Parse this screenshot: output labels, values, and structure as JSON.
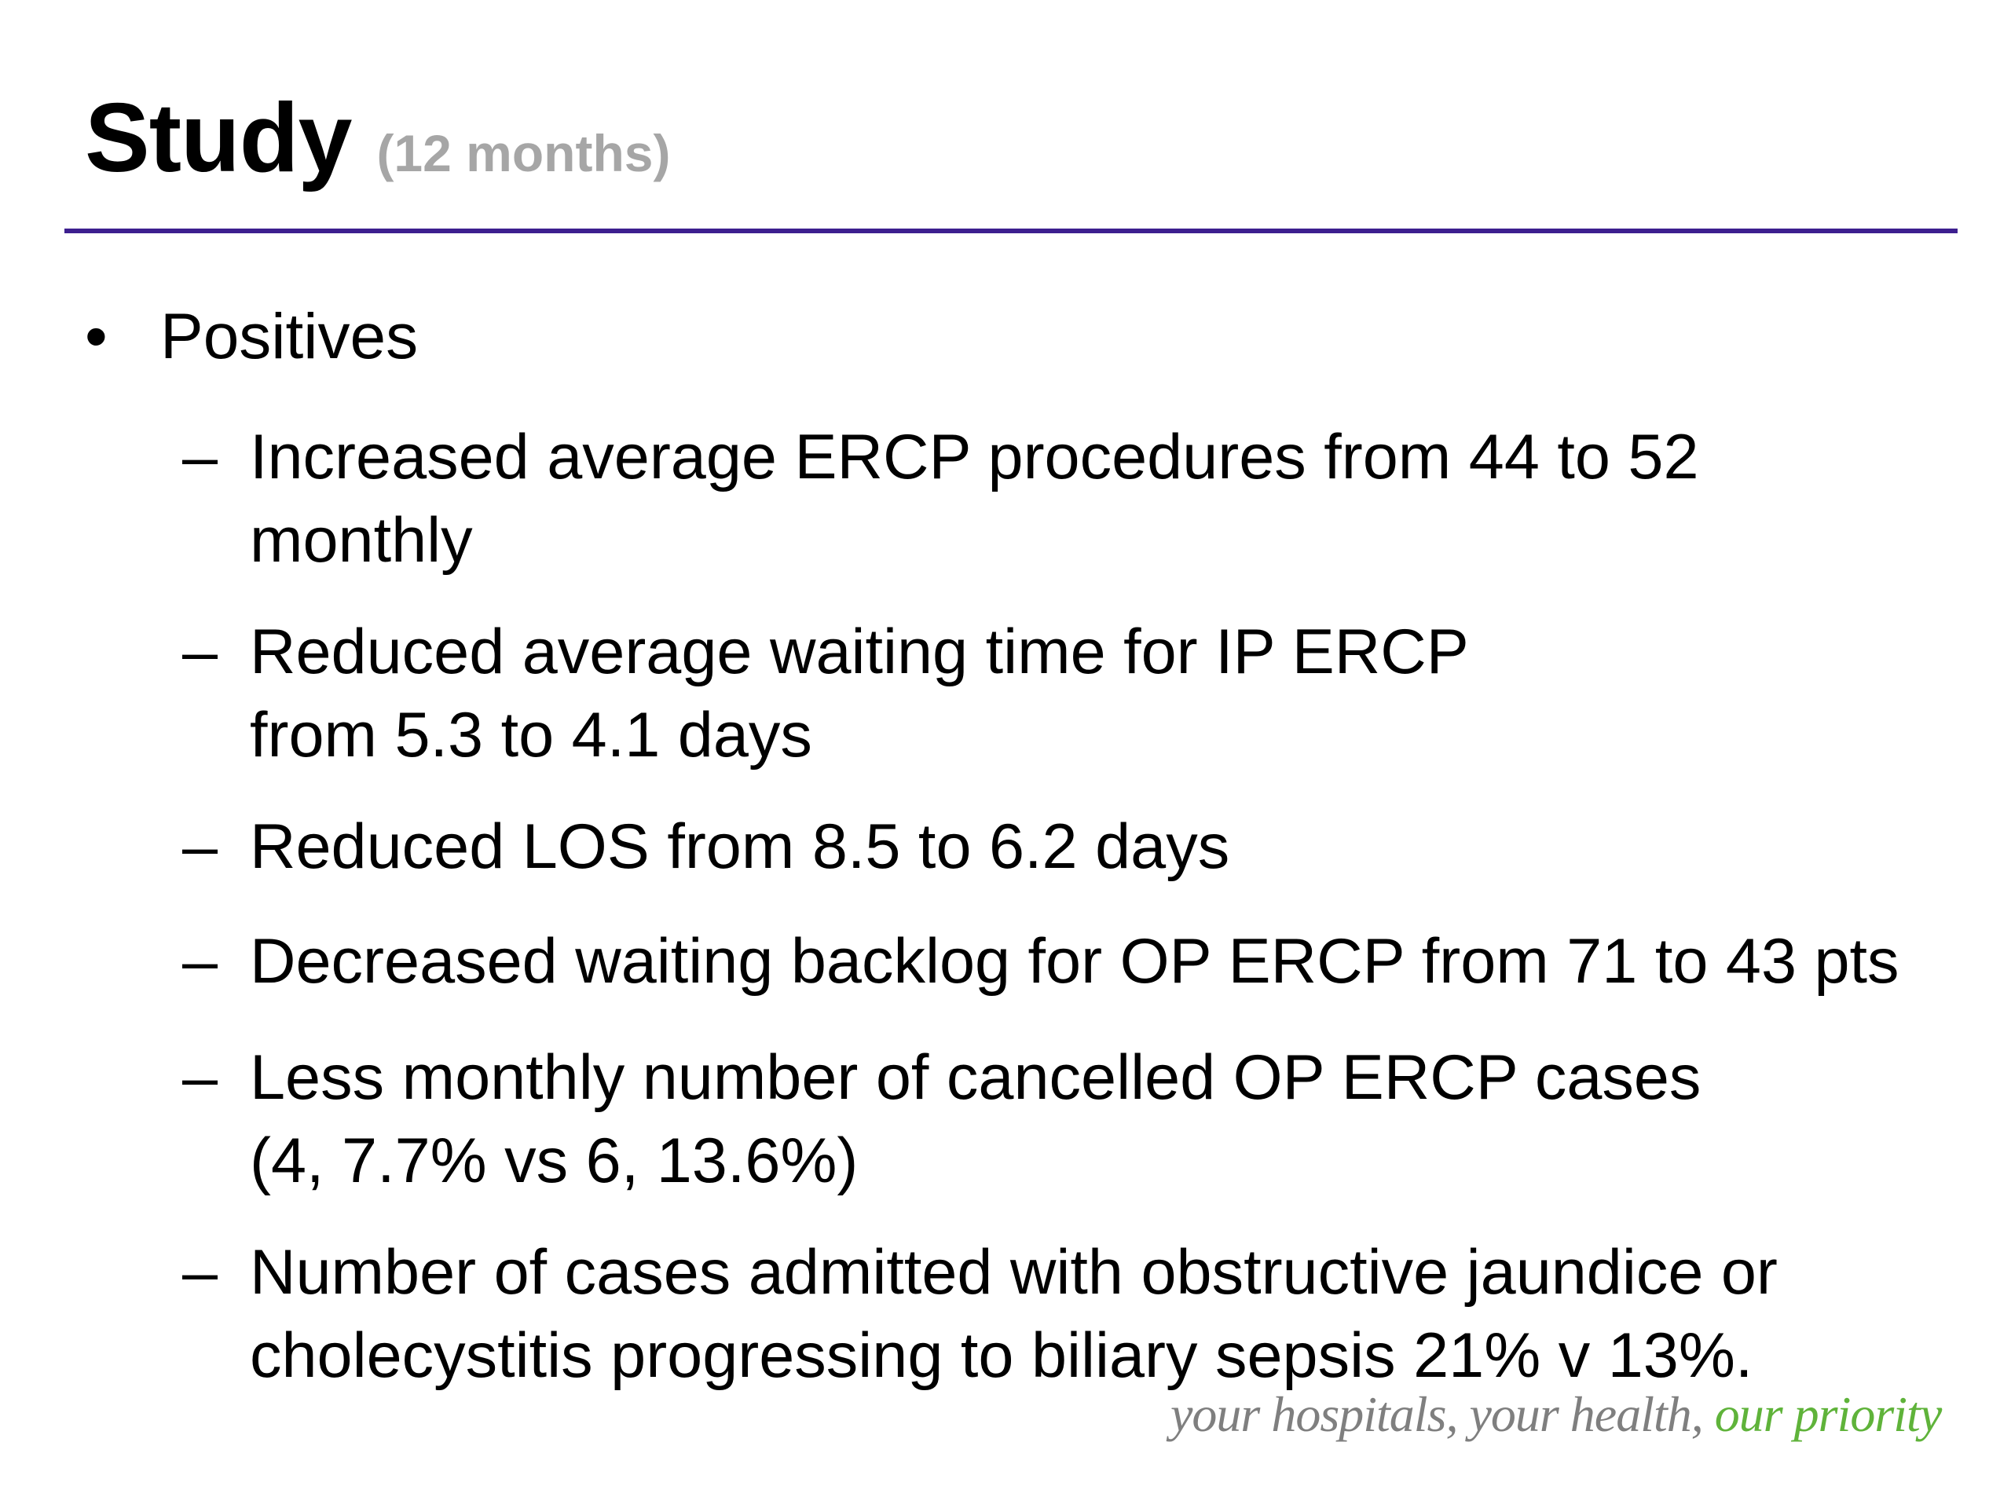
{
  "slide": {
    "title": "Study",
    "subtitle": "(12 months)",
    "bullet": {
      "marker": "•",
      "label": "Positives"
    },
    "dash": "–",
    "items": [
      {
        "lines": [
          "Increased average ERCP procedures from 44 to 52",
          "monthly"
        ]
      },
      {
        "lines": [
          "Reduced average waiting time for IP ERCP",
          "from 5.3 to 4.1 days"
        ]
      },
      {
        "lines": [
          "Reduced LOS from 8.5 to 6.2 days"
        ]
      },
      {
        "lines": [
          "Decreased waiting backlog for OP ERCP from 71 to 43 pts"
        ]
      },
      {
        "lines": [
          "Less monthly number of cancelled OP ERCP cases",
          "(4, 7.7% vs 6, 13.6%)"
        ]
      },
      {
        "lines": [
          "Number of cases admitted with obstructive jaundice or",
          "cholecystitis progressing to biliary sepsis 21% v 13%."
        ]
      }
    ],
    "footer": {
      "part1": "your hospitals, your health, ",
      "part2": "our priority"
    }
  },
  "colors": {
    "rule": "#3d1f8f",
    "subtitle": "#a6a6a6",
    "footer_gray": "#7f7f7f",
    "footer_green": "#5fb33a"
  }
}
